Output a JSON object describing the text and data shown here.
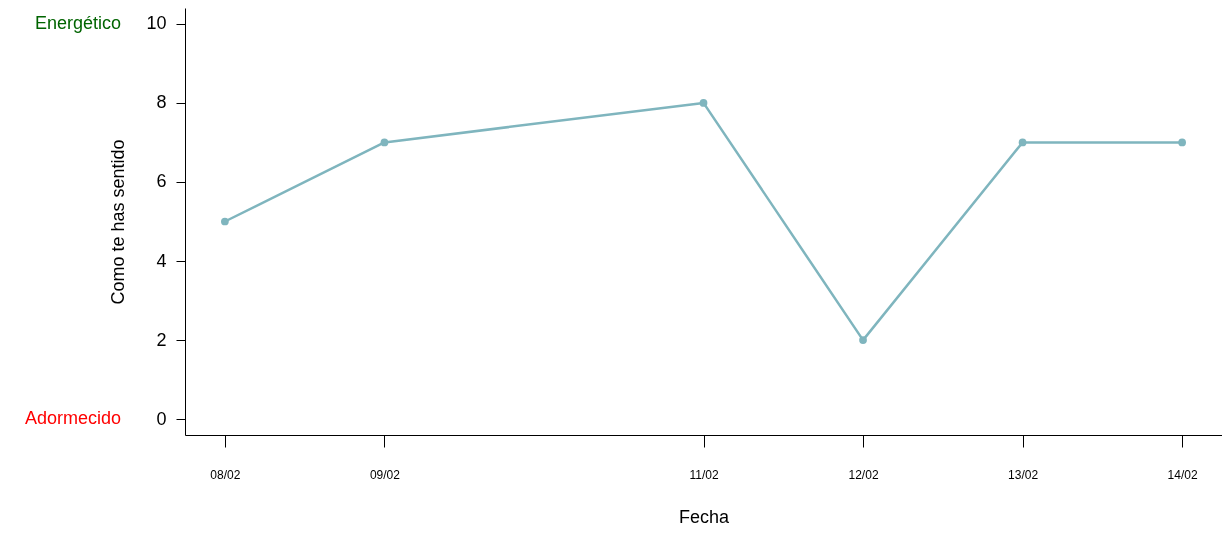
{
  "chart_data": {
    "type": "line",
    "xlabel": "Fecha",
    "ylabel": "Como te has sentido",
    "x": [
      "--02-08",
      "--02-09",
      "--02-11",
      "--02-12",
      "--02-13",
      "--02-14"
    ],
    "series": [
      {
        "color": "#7fb5be",
        "values": [
          5,
          7,
          8,
          2,
          7,
          7
        ]
      }
    ],
    "xlim": [
      "--02-07T18:00",
      "--02-14T06:00"
    ],
    "xticks": [
      {
        "value": "--02-08",
        "label": "08/02"
      },
      {
        "value": "--02-09",
        "label": "09/02"
      },
      {
        "value": "--02-11",
        "label": "11/02"
      },
      {
        "value": "--02-12",
        "label": "12/02"
      },
      {
        "value": "--02-13",
        "label": "13/02"
      },
      {
        "value": "--02-14",
        "label": "14/02"
      }
    ],
    "ylim": [
      -0.4,
      10.4
    ],
    "yticks": [
      0,
      2,
      4,
      6,
      8,
      10
    ],
    "annotations": [
      "Energético",
      "Adormecido"
    ],
    "marker": "circle",
    "line_style": "solid",
    "grid": false
  }
}
